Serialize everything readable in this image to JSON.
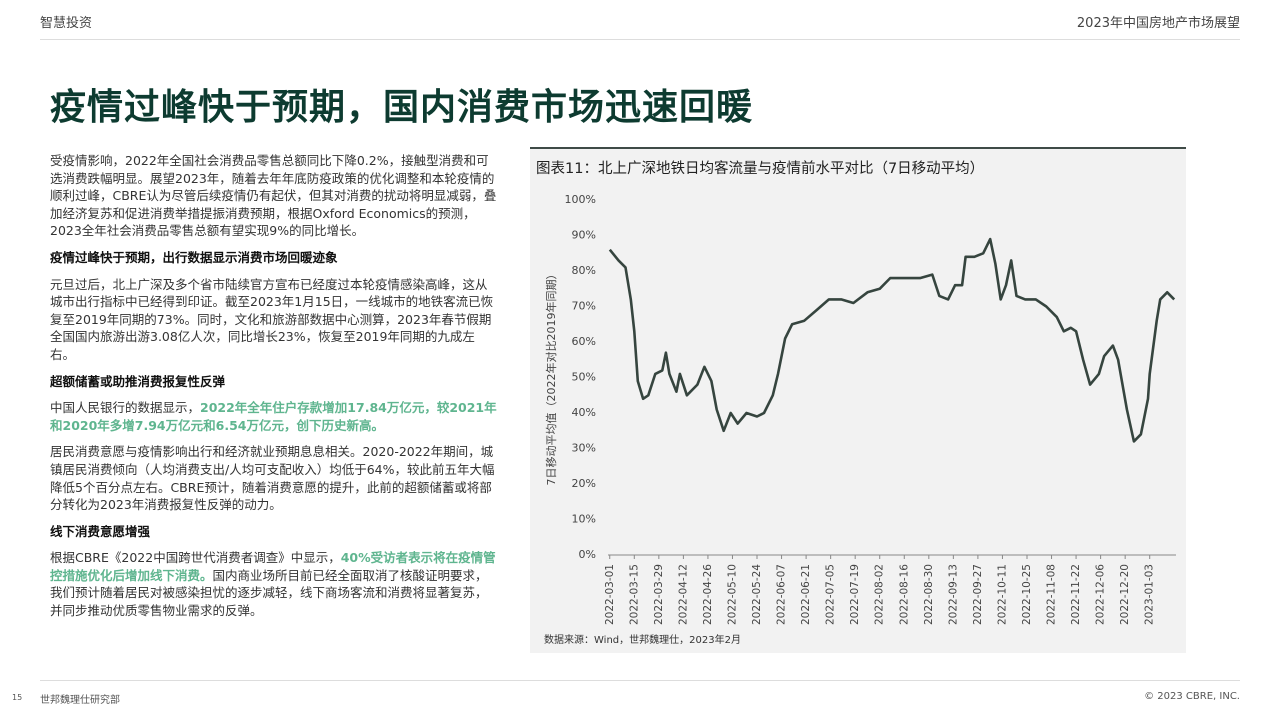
{
  "header": {
    "left": "智慧投资",
    "right": "2023年中国房地产市场展望"
  },
  "title": "疫情过峰快于预期，国内消费市场迅速回暖",
  "body": [
    {
      "segments": [
        {
          "text": "受疫情影响，2022年全国社会消费品零售总额同比下降0.2%，接触型消费和可选消费跌幅明显。展望2023年，随着去年年底防疫政策的优化调整和本轮疫情的顺利过峰，CBRE认为尽管后续疫情仍有起伏，但其对消费的扰动将明显减弱，叠加经济复苏和促进消费举措提振消费预期，根据Oxford Economics的预测，2023全年社会消费品零售总额有望实现9%的同比增长。",
          "emphasis": false
        }
      ]
    },
    {
      "heading": "疫情过峰快于预期，出行数据显示消费市场回暖迹象"
    },
    {
      "segments": [
        {
          "text": "元旦过后，北上广深及多个省市陆续官方宣布已经度过本轮疫情感染高峰，这从城市出行指标中已经得到印证。截至2023年1月15日，一线城市的地铁客流已恢复至2019年同期的73%。同时，文化和旅游部数据中心测算，2023年春节假期全国国内旅游出游3.08亿人次，同比增长23%，恢复至2019年同期的九成左右。",
          "emphasis": false
        }
      ]
    },
    {
      "heading": "超额储蓄或助推消费报复性反弹"
    },
    {
      "segments": [
        {
          "text": "中国人民银行的数据显示，",
          "emphasis": false
        },
        {
          "text": "2022年全年住户存款增加17.84万亿元，较2021年和2020年多增7.94万亿元和6.54万亿元，创下历史新高。",
          "emphasis": true
        }
      ]
    },
    {
      "segments": [
        {
          "text": "居民消费意愿与疫情影响出行和经济就业预期息息相关。2020-2022年期间，城镇居民消费倾向（人均消费支出/人均可支配收入）均低于64%，较此前五年大幅降低5个百分点左右。CBRE预计，随着消费意愿的提升，此前的超额储蓄或将部分转化为2023年消费报复性反弹的动力。",
          "emphasis": false
        }
      ]
    },
    {
      "heading": "线下消费意愿增强"
    },
    {
      "segments": [
        {
          "text": "根据CBRE《2022中国跨世代消费者调查》中显示，",
          "emphasis": false
        },
        {
          "text": "40%受访者表示将在疫情管控措施优化后增加线下消费。",
          "emphasis": true
        },
        {
          "text": "国内商业场所目前已经全面取消了核酸证明要求，我们预计随着居民对被感染担忧的逐步减轻，线下商场客流和消费将显著复苏，并同步推动优质零售物业需求的反弹。",
          "emphasis": false
        }
      ]
    }
  ],
  "chart_data": {
    "type": "line",
    "title": "图表11：北上广深地铁日均客流量与疫情前水平对比（7日移动平均）",
    "y_label": "7日移动平均值（2022年对比2019年同期）",
    "source": "数据来源：Wind，世邦魏理仕，2023年2月",
    "x": [
      "2022-03-01",
      "2022-03-06",
      "2022-03-10",
      "2022-03-13",
      "2022-03-15",
      "2022-03-17",
      "2022-03-20",
      "2022-03-23",
      "2022-03-27",
      "2022-03-31",
      "2022-04-02",
      "2022-04-04",
      "2022-04-08",
      "2022-04-10",
      "2022-04-14",
      "2022-04-20",
      "2022-04-24",
      "2022-04-28",
      "2022-05-01",
      "2022-05-05",
      "2022-05-09",
      "2022-05-13",
      "2022-05-18",
      "2022-05-24",
      "2022-05-28",
      "2022-06-02",
      "2022-06-05",
      "2022-06-09",
      "2022-06-13",
      "2022-06-20",
      "2022-06-27",
      "2022-07-04",
      "2022-07-11",
      "2022-07-18",
      "2022-07-26",
      "2022-08-02",
      "2022-08-08",
      "2022-08-16",
      "2022-08-25",
      "2022-09-01",
      "2022-09-05",
      "2022-09-10",
      "2022-09-14",
      "2022-09-18",
      "2022-09-20",
      "2022-09-25",
      "2022-09-30",
      "2022-10-04",
      "2022-10-07",
      "2022-10-10",
      "2022-10-13",
      "2022-10-16",
      "2022-10-19",
      "2022-10-24",
      "2022-10-30",
      "2022-11-05",
      "2022-11-11",
      "2022-11-15",
      "2022-11-19",
      "2022-11-22",
      "2022-11-26",
      "2022-11-30",
      "2022-12-05",
      "2022-12-08",
      "2022-12-13",
      "2022-12-16",
      "2022-12-21",
      "2022-12-25",
      "2022-12-29",
      "2023-01-02",
      "2023-01-03",
      "2023-01-07",
      "2023-01-09",
      "2023-01-13",
      "2023-01-17"
    ],
    "series": [
      {
        "color": "#36453f",
        "values": [
          86,
          83,
          81,
          72,
          63,
          49,
          44,
          45,
          51,
          52,
          57,
          51,
          46,
          51,
          45,
          48,
          53,
          49,
          41,
          35,
          40,
          37,
          40,
          39,
          40,
          45,
          51,
          61,
          65,
          66,
          69,
          72,
          72,
          71,
          74,
          75,
          78,
          78,
          78,
          79,
          73,
          72,
          76,
          76,
          84,
          84,
          85,
          89,
          82,
          72,
          76,
          83,
          73,
          72,
          72,
          70,
          67,
          63,
          64,
          63,
          55,
          48,
          51,
          56,
          59,
          55,
          41,
          32,
          34,
          44,
          51,
          66,
          72,
          74,
          72
        ]
      }
    ],
    "xlim": [
      "2022-02-28",
      "2023-01-18"
    ],
    "xticks": [
      "2022-03-01",
      "2022-03-15",
      "2022-03-29",
      "2022-04-12",
      "2022-04-26",
      "2022-05-10",
      "2022-05-24",
      "2022-06-07",
      "2022-06-21",
      "2022-07-05",
      "2022-07-19",
      "2022-08-02",
      "2022-08-16",
      "2022-08-30",
      "2022-09-13",
      "2022-09-27",
      "2022-10-11",
      "2022-10-25",
      "2022-11-08",
      "2022-11-22",
      "2022-12-06",
      "2022-12-20",
      "2023-01-03"
    ],
    "ylim": [
      0,
      100
    ],
    "yticks": [
      {
        "value": 0,
        "label": "0%"
      },
      {
        "value": 10,
        "label": "10%"
      },
      {
        "value": 20,
        "label": "20%"
      },
      {
        "value": 30,
        "label": "30%"
      },
      {
        "value": 40,
        "label": "40%"
      },
      {
        "value": 50,
        "label": "50%"
      },
      {
        "value": 60,
        "label": "60%"
      },
      {
        "value": 70,
        "label": "70%"
      },
      {
        "value": 80,
        "label": "80%"
      },
      {
        "value": 90,
        "label": "90%"
      },
      {
        "value": 100,
        "label": "100%"
      }
    ],
    "grid": false
  },
  "footer": {
    "page": "15",
    "left": "世邦魏理仕研究部",
    "right": "© 2023 CBRE, INC."
  }
}
